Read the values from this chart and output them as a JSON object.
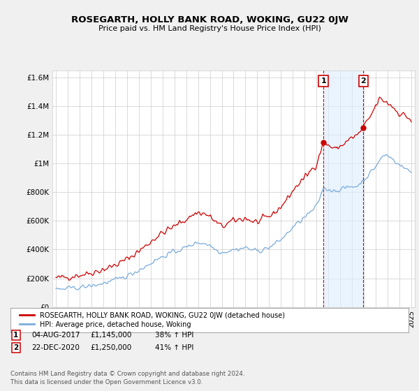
{
  "title": "ROSEGARTH, HOLLY BANK ROAD, WOKING, GU22 0JW",
  "subtitle": "Price paid vs. HM Land Registry's House Price Index (HPI)",
  "ylabel_ticks": [
    "£0",
    "£200K",
    "£400K",
    "£600K",
    "£800K",
    "£1M",
    "£1.2M",
    "£1.4M",
    "£1.6M"
  ],
  "ytick_vals": [
    0,
    200000,
    400000,
    600000,
    800000,
    1000000,
    1200000,
    1400000,
    1600000
  ],
  "ylim": [
    0,
    1650000
  ],
  "legend_line1": "ROSEGARTH, HOLLY BANK ROAD, WOKING, GU22 0JW (detached house)",
  "legend_line2": "HPI: Average price, detached house, Woking",
  "sale1_date": "04-AUG-2017",
  "sale1_price": "£1,145,000",
  "sale1_hpi": "38% ↑ HPI",
  "sale2_date": "22-DEC-2020",
  "sale2_price": "£1,250,000",
  "sale2_hpi": "41% ↑ HPI",
  "footer": "Contains HM Land Registry data © Crown copyright and database right 2024.\nThis data is licensed under the Open Government Licence v3.0.",
  "line_color_red": "#cc0000",
  "line_color_blue": "#7aabdb",
  "vline_color": "#cc0000",
  "shade_color": "#ddeeff",
  "background_color": "#f0f0f0",
  "plot_bg": "#ffffff",
  "sale1_year": 2017.58,
  "sale2_year": 2020.96,
  "sale1_val": 1145000,
  "sale2_val": 1250000
}
